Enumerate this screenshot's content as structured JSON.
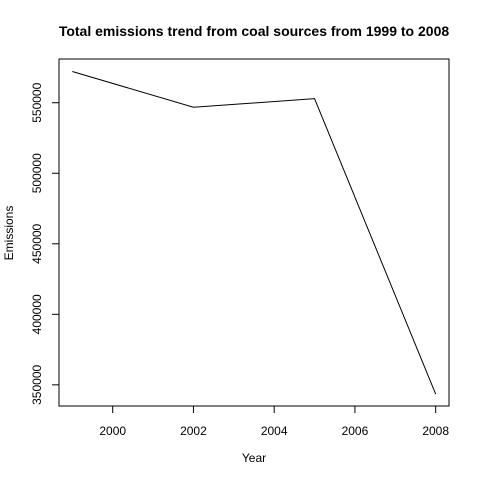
{
  "chart_data": {
    "type": "line",
    "title": "Total emissions trend from coal sources from 1999 to 2008",
    "xlabel": "Year",
    "ylabel": "Emissions",
    "x": [
      1999,
      2002,
      2005,
      2008
    ],
    "series": [
      {
        "values": [
          572126,
          546789,
          552881,
          343432
        ]
      }
    ],
    "xlim": [
      1998.67,
      2008.33
    ],
    "ylim": [
      335000,
      581000
    ],
    "xticks": [
      2000,
      2002,
      2004,
      2006,
      2008
    ],
    "yticks": [
      350000,
      400000,
      450000,
      500000,
      550000
    ],
    "grid": false,
    "line_color": "#000000"
  }
}
